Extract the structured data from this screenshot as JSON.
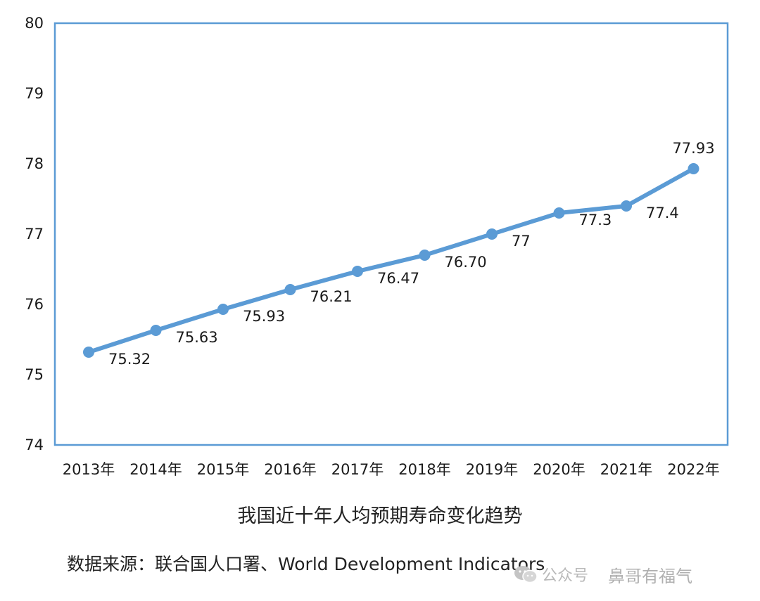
{
  "chart_data": {
    "type": "line",
    "title": "我国近十年人均预期寿命变化趋势",
    "source": "数据来源：联合国人口署、World Development Indicators",
    "categories": [
      "2013年",
      "2014年",
      "2015年",
      "2016年",
      "2017年",
      "2018年",
      "2019年",
      "2020年",
      "2021年",
      "2022年"
    ],
    "values": [
      75.32,
      75.63,
      75.93,
      76.21,
      76.47,
      76.7,
      77,
      77.3,
      77.4,
      77.93
    ],
    "data_labels": [
      "75.32",
      "75.63",
      "75.93",
      "76.21",
      "76.47",
      "76.70",
      "77",
      "77.3",
      "77.4",
      "77.93"
    ],
    "ylim": [
      74,
      80
    ],
    "yticks": [
      "74",
      "75",
      "76",
      "77",
      "78",
      "79",
      "80"
    ],
    "xlabel": "",
    "ylabel": "",
    "grid": false,
    "colors": {
      "line": "#5b9bd5",
      "frame": "#5b9bd5"
    }
  },
  "watermark": {
    "platform": "公众号",
    "name": "鼻哥有福气",
    "icon": "wechat-icon"
  }
}
